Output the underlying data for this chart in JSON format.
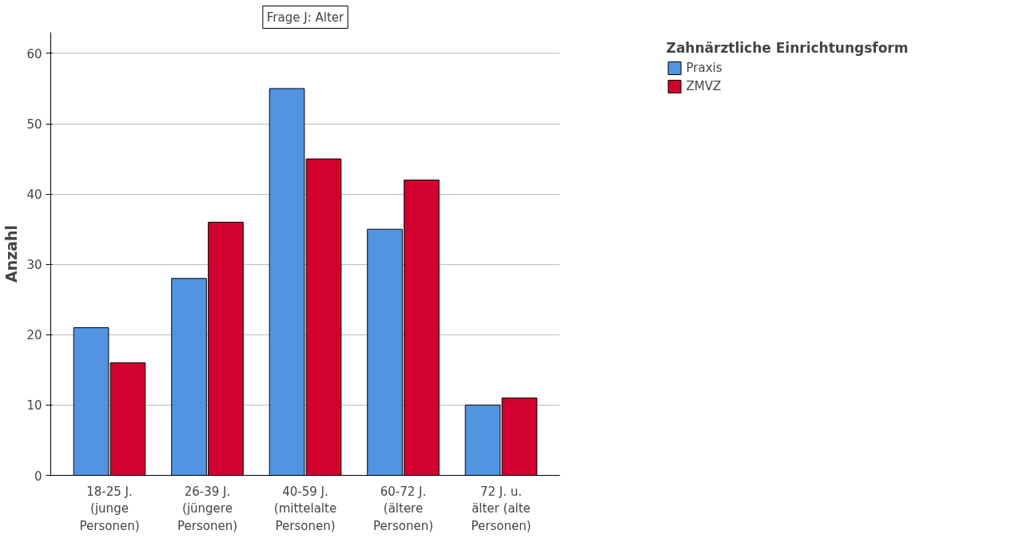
{
  "chart_data": {
    "type": "bar",
    "title": "Frage J: Alter",
    "ylabel": "Anzahl",
    "legend_title": "Zahnärztliche Einrichtungsform",
    "categories": [
      "18-25 J. (junge Personen)",
      "26-39 J. (jüngere Personen)",
      "40-59 J. (mittelalte Personen)",
      "60-72 J. (ältere Personen)",
      "72 J. u. älter (alte Personen)"
    ],
    "series": [
      {
        "name": "Praxis",
        "color": "#5294e2",
        "values": [
          21,
          28,
          55,
          35,
          10
        ]
      },
      {
        "name": "ZMVZ",
        "color": "#d2002e",
        "values": [
          16,
          36,
          45,
          42,
          11
        ]
      }
    ],
    "ylim": [
      0,
      63
    ],
    "yticks": [
      0,
      10,
      20,
      30,
      40,
      50,
      60
    ],
    "grid": "y",
    "legend": "top right"
  }
}
